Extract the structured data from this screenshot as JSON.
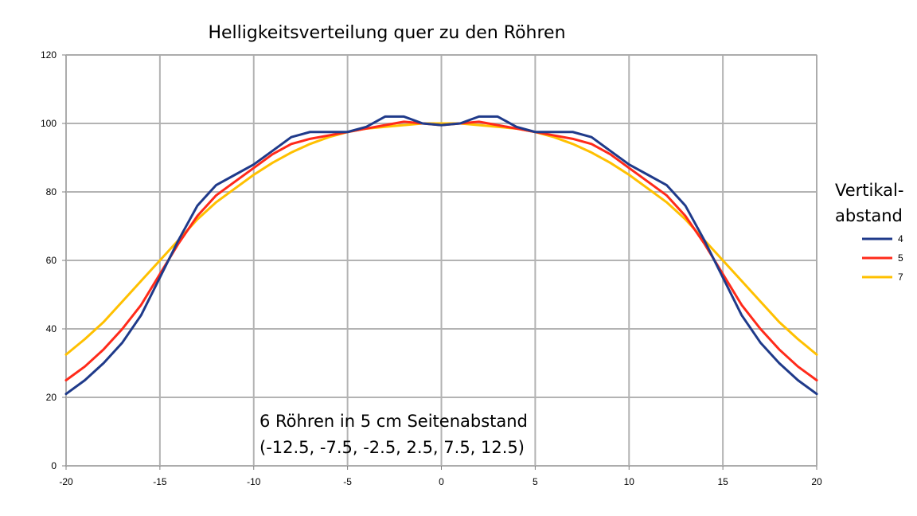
{
  "chart_data": {
    "type": "line",
    "title": "Helligkeitsverteilung quer zu den Röhren",
    "xlabel": "",
    "ylabel": "",
    "xlim": [
      -20,
      20
    ],
    "ylim": [
      0,
      120
    ],
    "x_ticks": [
      -20,
      -15,
      -10,
      -5,
      0,
      5,
      10,
      15,
      20
    ],
    "y_ticks": [
      0,
      20,
      40,
      60,
      80,
      100,
      120
    ],
    "grid": true,
    "legend_title": [
      "Vertikal-",
      "abstand"
    ],
    "legend_position": "right",
    "annotation": [
      "6 Röhren in 5 cm Seitenabstand",
      "(-12.5, -7.5, -2.5, 2.5, 7.5, 12.5)"
    ],
    "x": [
      -20,
      -19,
      -18,
      -17,
      -16,
      -15,
      -14,
      -13,
      -12,
      -11,
      -10,
      -9,
      -8,
      -7,
      -6,
      -5,
      -4,
      -3,
      -2,
      -1,
      0,
      1,
      2,
      3,
      4,
      5,
      6,
      7,
      8,
      9,
      10,
      11,
      12,
      13,
      14,
      15,
      16,
      17,
      18,
      19,
      20
    ],
    "series": [
      {
        "name": "4",
        "color": "#1f3a8a",
        "values": [
          21,
          25,
          30,
          36,
          44,
          55,
          66,
          76,
          82,
          85,
          88,
          92,
          96,
          97.5,
          97.5,
          97.5,
          99,
          102,
          102,
          100,
          99.5,
          100,
          102,
          102,
          99,
          97.5,
          97.5,
          97.5,
          96,
          92,
          88,
          85,
          82,
          76,
          66,
          55,
          44,
          36,
          30,
          25,
          21
        ]
      },
      {
        "name": "5",
        "color": "#ff2a1a",
        "values": [
          25,
          29,
          34,
          40,
          47,
          56,
          65,
          73,
          79,
          83,
          87,
          91,
          94,
          95.5,
          96.5,
          97.5,
          98.5,
          99.5,
          100.5,
          100,
          99.5,
          100,
          100.5,
          99.5,
          98.5,
          97.5,
          96.5,
          95.5,
          94,
          91,
          87,
          83,
          79,
          73,
          65,
          56,
          47,
          40,
          34,
          29,
          25
        ]
      },
      {
        "name": "7",
        "color": "#ffc000",
        "values": [
          32.5,
          37,
          42,
          48,
          54,
          60,
          66,
          72,
          77,
          81,
          85,
          88.5,
          91.5,
          94,
          96,
          97.5,
          98.5,
          99,
          99.5,
          100,
          100,
          100,
          99.5,
          99,
          98.5,
          97.5,
          96,
          94,
          91.5,
          88.5,
          85,
          81,
          77,
          72,
          66,
          60,
          54,
          48,
          42,
          37,
          32.5
        ]
      }
    ]
  }
}
